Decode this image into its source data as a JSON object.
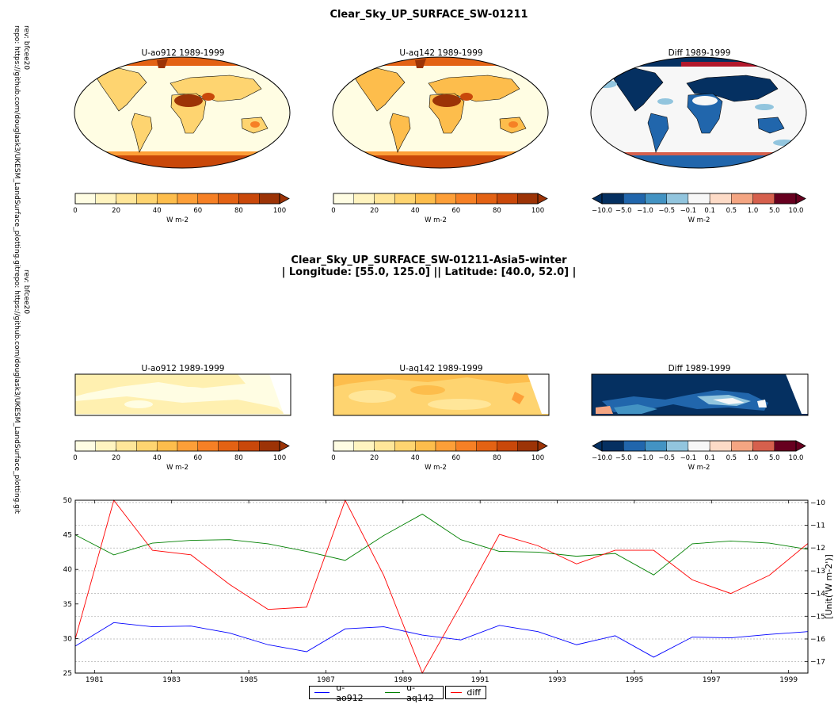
{
  "figure": {
    "main_title": "Clear_Sky_UP_SURFACE_SW-01211",
    "region_title_line1": "Clear_Sky_UP_SURFACE_SW-01211-Asia5-winter",
    "region_title_line2": "| Longitude: [55.0, 125.0] || Latitude: [40.0, 52.0] |",
    "side_note_rev": "rev:  bfcee20",
    "side_note_repo": "repo: https://github.com/douglask3/UKESM_LandSurface_plotting.git"
  },
  "maps": {
    "panel_titles": [
      "U-ao912 1989-1999",
      "U-aq142 1989-1999",
      "Diff 1989-1999"
    ],
    "colorbar_units": "W m-2",
    "abs_ticks": [
      "0",
      "20",
      "40",
      "60",
      "80",
      "100"
    ],
    "diff_ticks": [
      "−10.0",
      "−5.0",
      "−1.0",
      "−0.5",
      "−0.1",
      "0.1",
      "0.5",
      "1.0",
      "5.0",
      "10.0"
    ],
    "abs_colors": [
      "#fffde3",
      "#fff4c0",
      "#ffe699",
      "#fed470",
      "#fdbd4c",
      "#fd9f38",
      "#f68025",
      "#e36214",
      "#c9480a",
      "#9c3306"
    ],
    "diff_colors": [
      "#053061",
      "#2166ac",
      "#4393c3",
      "#92c5de",
      "#f7f7f7",
      "#fddbc7",
      "#f4a582",
      "#d6604d",
      "#67001f"
    ]
  },
  "chart_data": {
    "type": "line",
    "x": [
      1980.5,
      1981.5,
      1982.5,
      1983.5,
      1984.5,
      1985.5,
      1986.5,
      1987.5,
      1988.5,
      1989.5,
      1990.5,
      1991.5,
      1992.5,
      1993.5,
      1994.5,
      1995.5,
      1996.5,
      1997.5,
      1998.5,
      1999.5
    ],
    "xlim": [
      1980.5,
      1999.5
    ],
    "xticks": [
      "1981",
      "1983",
      "1985",
      "1987",
      "1989",
      "1991",
      "1993",
      "1995",
      "1997",
      "1999"
    ],
    "ylim_left": [
      25,
      50
    ],
    "yticks_left": [
      "25",
      "30",
      "35",
      "40",
      "45",
      "50"
    ],
    "ylim_right": [
      -17.5,
      -9.9
    ],
    "yticks_right": [
      "−17",
      "−16",
      "−15",
      "−14",
      "−13",
      "−12",
      "−11",
      "−10"
    ],
    "ylabel_right": "[Unit('W m-2')]",
    "grid": true,
    "legend_position": "bottom-center",
    "series": [
      {
        "name": "u-ao912",
        "axis": "left",
        "color": "#0000ff",
        "values": [
          28.9,
          32.3,
          31.7,
          31.8,
          30.8,
          29.1,
          28.1,
          31.4,
          31.7,
          30.5,
          29.8,
          31.9,
          31.0,
          29.1,
          30.4,
          27.3,
          30.2,
          30.1,
          30.6,
          31.0
        ]
      },
      {
        "name": "u-aq142",
        "axis": "left",
        "color": "#008000",
        "values": [
          45.0,
          42.1,
          43.8,
          44.2,
          44.3,
          43.7,
          42.6,
          41.3,
          44.9,
          48.0,
          44.3,
          42.6,
          42.5,
          41.9,
          42.3,
          39.2,
          43.7,
          44.1,
          43.8,
          42.9
        ]
      },
      {
        "name": "diff",
        "axis": "right",
        "color": "#ff0000",
        "values": [
          -16.0,
          -9.9,
          -12.1,
          -12.3,
          -13.6,
          -14.7,
          -14.6,
          -9.9,
          -13.2,
          -17.5,
          -14.5,
          -11.4,
          -11.9,
          -12.7,
          -12.1,
          -12.1,
          -13.4,
          -14.0,
          -13.2,
          -11.8
        ]
      }
    ]
  }
}
